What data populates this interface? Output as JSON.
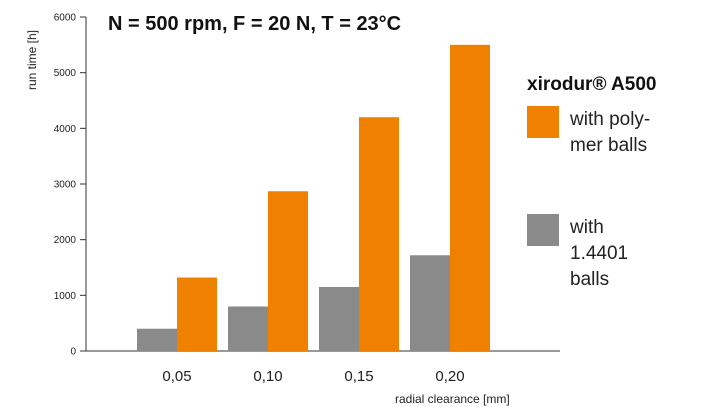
{
  "chart_data": {
    "type": "bar",
    "title": "N = 500 rpm, F = 20 N, T = 23°C",
    "xlabel": "radial clearance [mm]",
    "ylabel": "run time [h]",
    "ylim": [
      0,
      6000
    ],
    "yticks": [
      "0",
      "1000",
      "2000",
      "3000",
      "4000",
      "5000",
      "6000"
    ],
    "categories": [
      "0,05",
      "0,10",
      "0,15",
      "0,20"
    ],
    "legend_title": "xirodur® A500",
    "legend_position": "right",
    "series": [
      {
        "name_lines": [
          "with 1.4401",
          "balls"
        ],
        "name": "with 1.4401 balls",
        "color": "#8a8a8a",
        "values": [
          400,
          800,
          1150,
          1720
        ]
      },
      {
        "name_lines": [
          "with poly-",
          "mer balls"
        ],
        "name": "with polymer balls",
        "color": "#f08000",
        "values": [
          1320,
          2870,
          4200,
          5500
        ]
      }
    ],
    "grid": false
  }
}
